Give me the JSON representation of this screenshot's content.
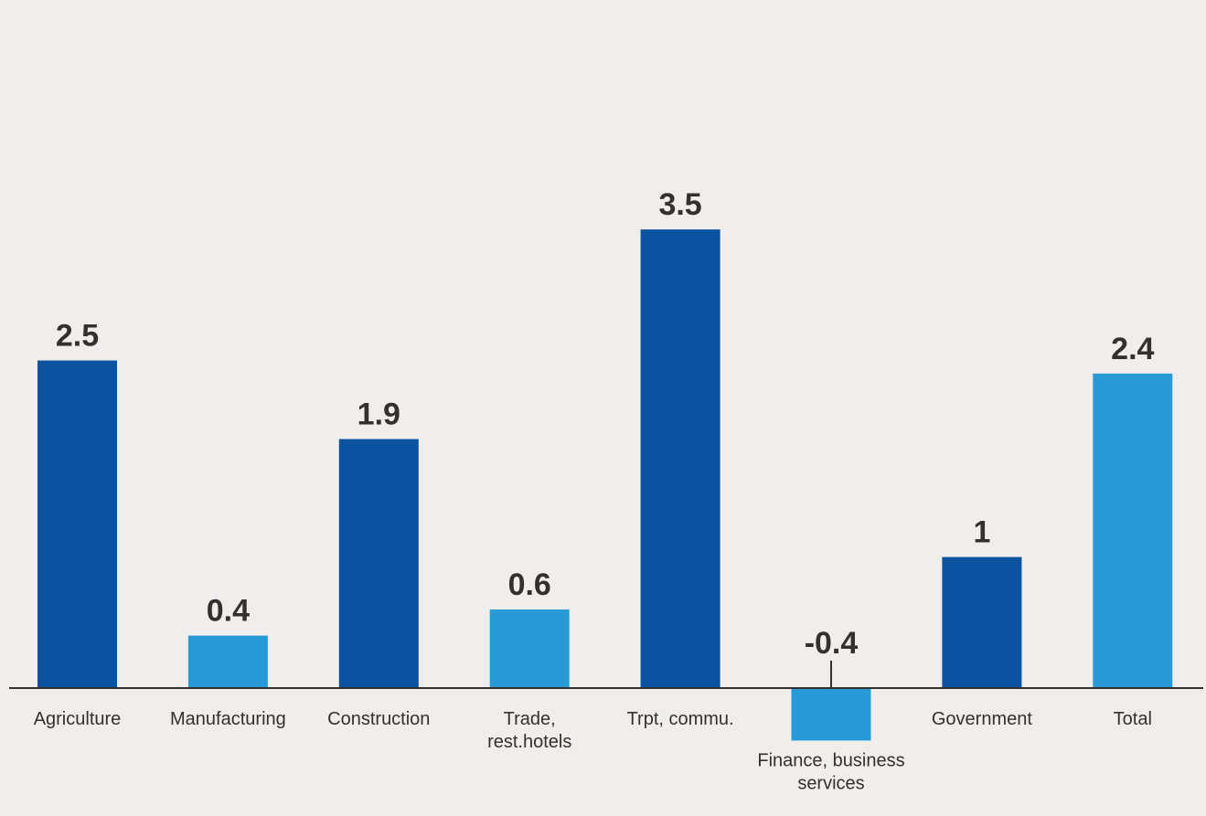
{
  "chart_data": {
    "type": "bar",
    "categories": [
      [
        "Agriculture"
      ],
      [
        "Manufacturing"
      ],
      [
        "Construction"
      ],
      [
        "Trade,",
        "rest.hotels"
      ],
      [
        "Trpt, commu."
      ],
      [
        "Finance, business",
        "services"
      ],
      [
        "Government"
      ],
      [
        "Total"
      ]
    ],
    "values": [
      2.5,
      0.4,
      1.9,
      0.6,
      3.5,
      -0.4,
      1,
      2.4
    ],
    "value_labels": [
      "2.5",
      "0.4",
      "1.9",
      "0.6",
      "3.5",
      "-0.4",
      "1",
      "2.4"
    ],
    "bar_colors": [
      "#0b52a0",
      "#289bd6",
      "#0b52a0",
      "#289bd6",
      "#0b52a0",
      "#289bd6",
      "#0b52a0",
      "#289bd6"
    ],
    "title": "",
    "xlabel": "",
    "ylabel": "",
    "ylim": [
      -0.4,
      3.5
    ],
    "grid": false,
    "legend": "none"
  },
  "colors": {
    "background": "#efeeed",
    "dark_bar": "#0b52a0",
    "light_bar": "#289bd6",
    "text": "#33302e",
    "axis": "#33302e"
  }
}
